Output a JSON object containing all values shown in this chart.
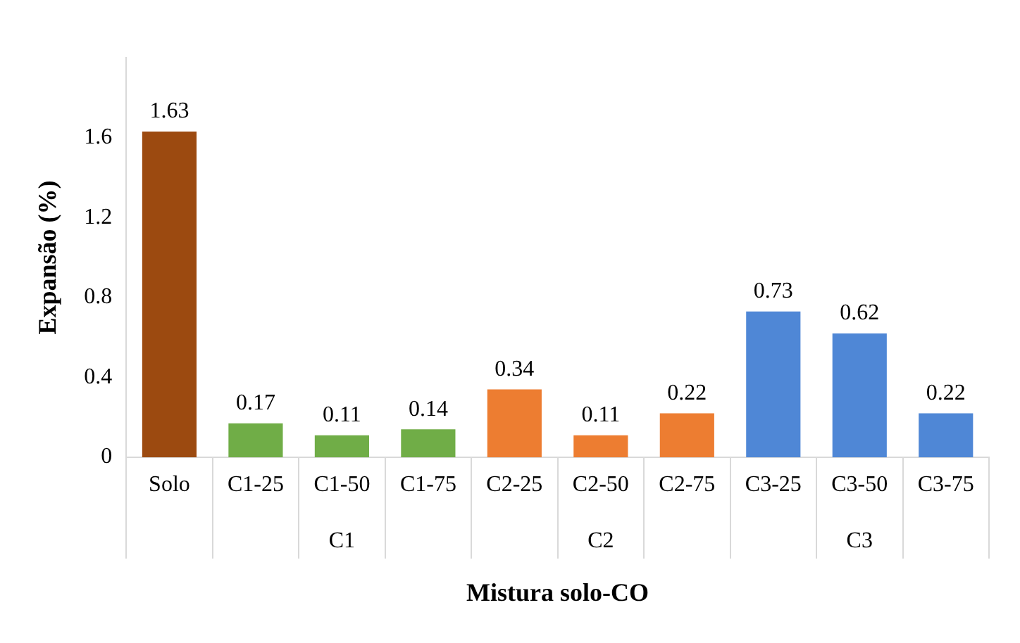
{
  "chart_data": {
    "type": "bar",
    "xlabel": "Mistura solo-CO",
    "ylabel": "Expansão (%)",
    "categories": [
      "Solo",
      "C1-25",
      "C1-50",
      "C1-75",
      "C2-25",
      "C2-50",
      "C2-75",
      "C3-25",
      "C3-50",
      "C3-75"
    ],
    "values": [
      1.63,
      0.17,
      0.11,
      0.14,
      0.34,
      0.11,
      0.22,
      0.73,
      0.62,
      0.22
    ],
    "colors": [
      "#9c4a10",
      "#70ad47",
      "#70ad47",
      "#70ad47",
      "#ed7d31",
      "#ed7d31",
      "#ed7d31",
      "#4f87d6",
      "#4f87d6",
      "#4f87d6"
    ],
    "ylim": [
      0,
      2
    ],
    "yticks": [
      0,
      0.4,
      0.8,
      1.2,
      1.6
    ],
    "data_labels": true,
    "grid": false,
    "legend": false,
    "annotations": [
      "C1",
      "C2",
      "C3"
    ]
  }
}
